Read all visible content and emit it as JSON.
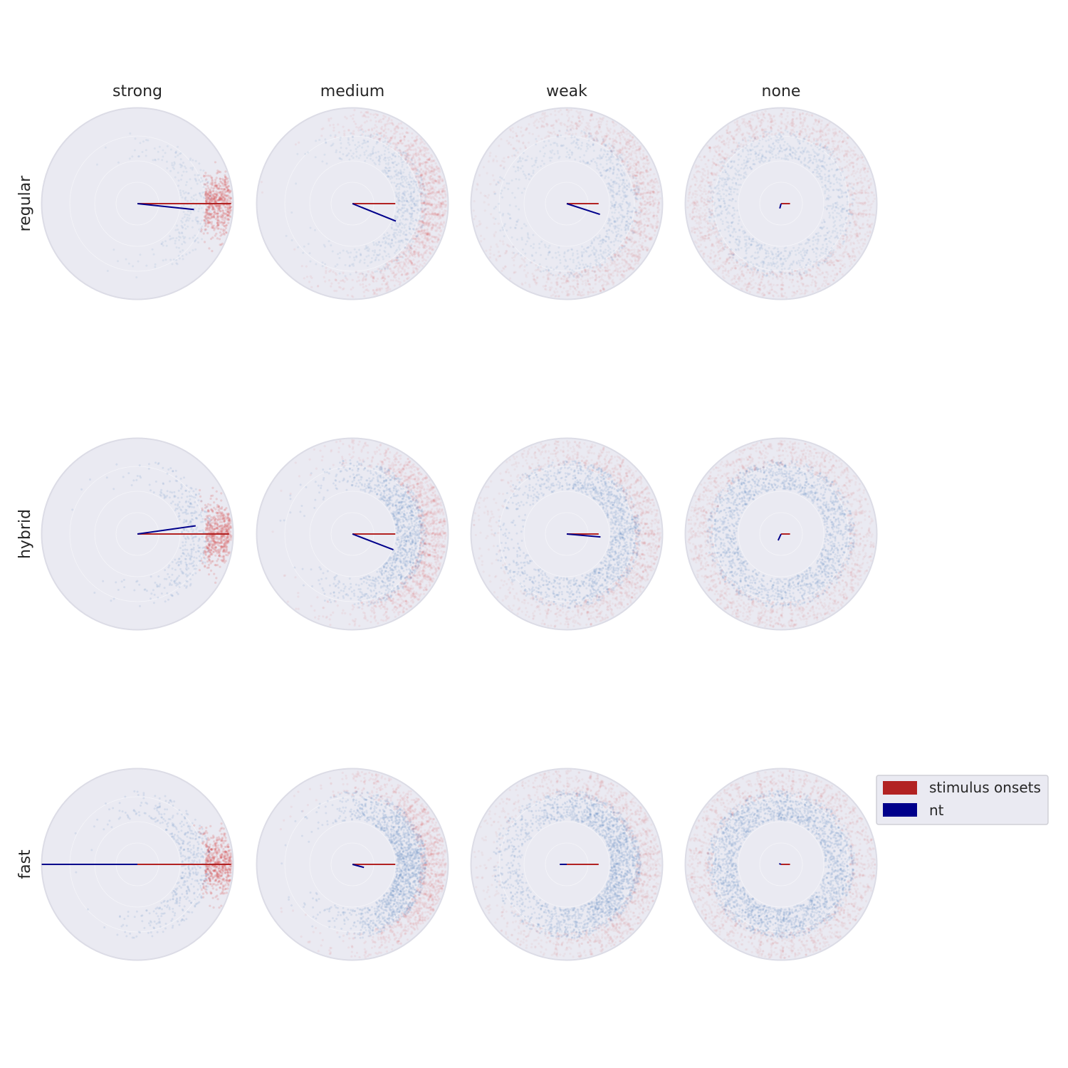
{
  "chart_data": {
    "type": "scatter",
    "subtype": "polar-grid",
    "columns": [
      "strong",
      "medium",
      "weak",
      "none"
    ],
    "rows": [
      "regular",
      "hybrid",
      "fast"
    ],
    "legend": {
      "placement": "right",
      "entries": [
        {
          "label": "stimulus onsets",
          "color": "#b22222"
        },
        {
          "label": "nt",
          "color": "#00008b"
        }
      ]
    },
    "colors": {
      "panel_background": "#eaeaf2",
      "onset_points": "#d04545",
      "nt_points": "#4f7fb8",
      "onset_vector": "#b22222",
      "nt_vector": "#00008b"
    },
    "mean_vectors": [
      {
        "row": "regular",
        "col": "strong",
        "onset": {
          "length": 0.94,
          "angle_deg": 0
        },
        "nt": {
          "length": 0.57,
          "angle_deg": -6
        }
      },
      {
        "row": "regular",
        "col": "medium",
        "onset": {
          "length": 0.43,
          "angle_deg": 0
        },
        "nt": {
          "length": 0.47,
          "angle_deg": -22
        }
      },
      {
        "row": "regular",
        "col": "weak",
        "onset": {
          "length": 0.32,
          "angle_deg": 0
        },
        "nt": {
          "length": 0.35,
          "angle_deg": -18
        }
      },
      {
        "row": "regular",
        "col": "none",
        "onset": {
          "length": 0.09,
          "angle_deg": 0
        },
        "nt": {
          "length": 0.05,
          "angle_deg": -105
        }
      },
      {
        "row": "hybrid",
        "col": "strong",
        "onset": {
          "length": 0.92,
          "angle_deg": 0
        },
        "nt": {
          "length": 0.59,
          "angle_deg": 8
        }
      },
      {
        "row": "hybrid",
        "col": "medium",
        "onset": {
          "length": 0.43,
          "angle_deg": 0
        },
        "nt": {
          "length": 0.44,
          "angle_deg": -21
        }
      },
      {
        "row": "hybrid",
        "col": "weak",
        "onset": {
          "length": 0.32,
          "angle_deg": 0
        },
        "nt": {
          "length": 0.34,
          "angle_deg": -5
        }
      },
      {
        "row": "hybrid",
        "col": "none",
        "onset": {
          "length": 0.09,
          "angle_deg": 0
        },
        "nt": {
          "length": 0.07,
          "angle_deg": -115
        }
      },
      {
        "row": "fast",
        "col": "strong",
        "onset": {
          "length": 0.94,
          "angle_deg": 0
        },
        "nt": {
          "length": 0.96,
          "angle_deg": 180
        }
      },
      {
        "row": "fast",
        "col": "medium",
        "onset": {
          "length": 0.43,
          "angle_deg": 0
        },
        "nt": {
          "length": 0.12,
          "angle_deg": -15
        }
      },
      {
        "row": "fast",
        "col": "weak",
        "onset": {
          "length": 0.32,
          "angle_deg": 0
        },
        "nt": {
          "length": 0.07,
          "angle_deg": 180
        }
      },
      {
        "row": "fast",
        "col": "none",
        "onset": {
          "length": 0.09,
          "angle_deg": 0
        },
        "nt": {
          "length": 0.02,
          "angle_deg": 160
        }
      }
    ],
    "grid": true
  }
}
